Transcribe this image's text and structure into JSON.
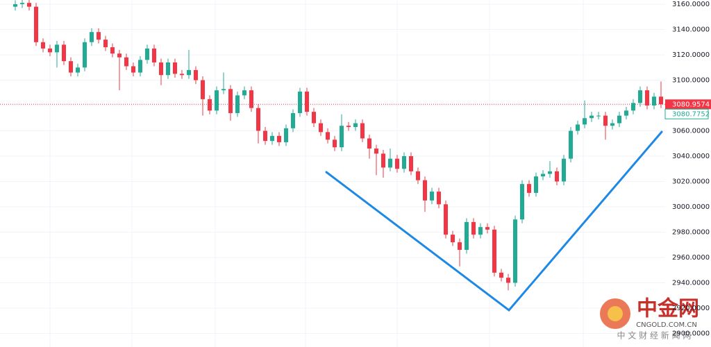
{
  "chart_data": {
    "type": "candlestick",
    "up_color": "#22ab94",
    "down_color": "#f23645",
    "ylim": [
      2889.3,
      3163.3
    ],
    "yticks": [
      {
        "value": 3160,
        "label": "3160.0000"
      },
      {
        "value": 3140,
        "label": "3140.0000"
      },
      {
        "value": 3120,
        "label": "3120.0000"
      },
      {
        "value": 3100,
        "label": "3100.0000"
      },
      {
        "value": 3080,
        "label": "3080.0000"
      },
      {
        "value": 3060,
        "label": "3060.0000"
      },
      {
        "value": 3040,
        "label": "3040.0000"
      },
      {
        "value": 3020,
        "label": "3020.0000"
      },
      {
        "value": 3000,
        "label": "3000.0000"
      },
      {
        "value": 2980,
        "label": "2980.0000"
      },
      {
        "value": 2960,
        "label": "2960.0000"
      },
      {
        "value": 2940,
        "label": "2940.0000"
      },
      {
        "value": 2920,
        "label": "2920.0000"
      },
      {
        "value": 2900,
        "label": "2900.0000"
      }
    ],
    "open": [
      3158,
      3160,
      3161,
      3158,
      3130,
      3125,
      3122,
      3128,
      3115,
      3106,
      3110,
      3130,
      3138,
      3132,
      3126,
      3121,
      3118,
      3111,
      3106,
      3116,
      3125,
      3114,
      3104,
      3114,
      3105,
      3104,
      3108,
      3100,
      3085,
      3076,
      3092,
      3093,
      3074,
      3088,
      3092,
      3078,
      3060,
      3052,
      3056,
      3051,
      3062,
      3074,
      3091,
      3075,
      3066,
      3059,
      3053,
      3047,
      3064,
      3063,
      3066,
      3054,
      3046,
      3042,
      3031,
      3038,
      3030,
      3040,
      3028,
      3021,
      3005,
      3012,
      3002,
      2978,
      2972,
      2966,
      2988,
      2978,
      2984,
      2982,
      2948,
      2944,
      2940,
      2990,
      3018,
      3011,
      3024,
      3026,
      3028,
      3020,
      3038,
      3060,
      3065,
      3070,
      3072,
      3072,
      3064,
      3066,
      3072,
      3076,
      3082,
      3092,
      3080,
      3087
    ],
    "high": [
      3163,
      3164,
      3164,
      3161,
      3133,
      3128,
      3131,
      3131,
      3118,
      3113,
      3133,
      3141,
      3141,
      3135,
      3129,
      3124,
      3121,
      3114,
      3119,
      3128,
      3128,
      3117,
      3117,
      3117,
      3108,
      3124,
      3111,
      3103,
      3088,
      3095,
      3106,
      3096,
      3091,
      3095,
      3095,
      3081,
      3063,
      3059,
      3059,
      3065,
      3077,
      3094,
      3094,
      3078,
      3069,
      3062,
      3056,
      3073,
      3067,
      3069,
      3069,
      3057,
      3049,
      3045,
      3046,
      3041,
      3043,
      3043,
      3031,
      3024,
      3015,
      3015,
      3005,
      2981,
      2975,
      2991,
      2991,
      2987,
      2987,
      2985,
      2951,
      2947,
      2993,
      3021,
      3021,
      3027,
      3029,
      3036,
      3031,
      3041,
      3063,
      3068,
      3084,
      3075,
      3075,
      3075,
      3069,
      3075,
      3079,
      3085,
      3095,
      3095,
      3090,
      3099
    ],
    "low": [
      3155,
      3157,
      3155,
      3127,
      3122,
      3119,
      3110,
      3112,
      3103,
      3103,
      3107,
      3127,
      3129,
      3123,
      3118,
      3092,
      3108,
      3103,
      3103,
      3113,
      3111,
      3096,
      3101,
      3102,
      3101,
      3101,
      3097,
      3072,
      3073,
      3073,
      3089,
      3068,
      3071,
      3085,
      3075,
      3050,
      3049,
      3049,
      3048,
      3048,
      3059,
      3071,
      3072,
      3063,
      3056,
      3050,
      3044,
      3044,
      3060,
      3060,
      3051,
      3038,
      3025,
      3023,
      3028,
      3027,
      3027,
      3025,
      3018,
      2996,
      3002,
      2999,
      2975,
      2969,
      2953,
      2963,
      2975,
      2975,
      2979,
      2945,
      2941,
      2934,
      2937,
      2987,
      3008,
      3008,
      3021,
      3023,
      3017,
      3017,
      3035,
      3057,
      3062,
      3067,
      3069,
      3053,
      3061,
      3063,
      3069,
      3073,
      3079,
      3077,
      3077,
      3078
    ],
    "close": [
      3160,
      3161,
      3158,
      3130,
      3125,
      3122,
      3128,
      3115,
      3106,
      3110,
      3130,
      3138,
      3132,
      3126,
      3121,
      3118,
      3111,
      3106,
      3116,
      3125,
      3114,
      3104,
      3114,
      3105,
      3104,
      3108,
      3100,
      3085,
      3076,
      3092,
      3093,
      3074,
      3088,
      3092,
      3078,
      3060,
      3052,
      3056,
      3051,
      3062,
      3074,
      3091,
      3075,
      3066,
      3059,
      3053,
      3047,
      3064,
      3063,
      3066,
      3054,
      3046,
      3042,
      3031,
      3038,
      3030,
      3040,
      3028,
      3021,
      3005,
      3012,
      3002,
      2978,
      2972,
      2966,
      2988,
      2978,
      2984,
      2982,
      2948,
      2944,
      2940,
      2990,
      3018,
      3011,
      3024,
      3026,
      3028,
      3020,
      3038,
      3060,
      3065,
      3070,
      3072,
      3072,
      3064,
      3066,
      3072,
      3076,
      3082,
      3092,
      3080,
      3087,
      3080.9574
    ],
    "price_labels": [
      3080.9574,
      3080.7752
    ]
  },
  "watermark": {
    "name": "中金网",
    "site": "CNGOLD.COM.CN",
    "slogan": "中 文 财 经 新 闻 网"
  }
}
